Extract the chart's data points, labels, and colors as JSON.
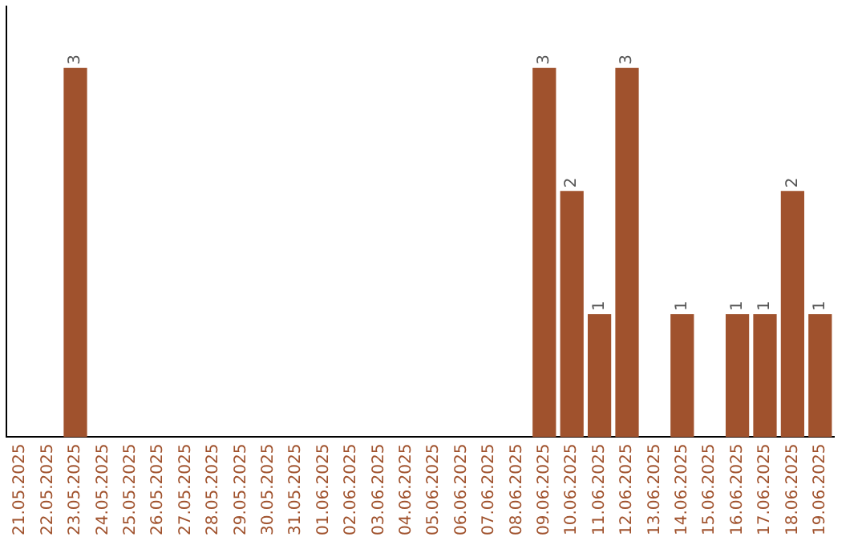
{
  "chart_data": {
    "type": "bar",
    "categories": [
      "21.05.2025",
      "22.05.2025",
      "23.05.2025",
      "24.05.2025",
      "25.05.2025",
      "26.05.2025",
      "27.05.2025",
      "28.05.2025",
      "29.05.2025",
      "30.05.2025",
      "31.05.2025",
      "01.06.2025",
      "02.06.2025",
      "03.06.2025",
      "04.06.2025",
      "05.06.2025",
      "06.06.2025",
      "07.06.2025",
      "08.06.2025",
      "09.06.2025",
      "10.06.2025",
      "11.06.2025",
      "12.06.2025",
      "13.06.2025",
      "14.06.2025",
      "15.06.2025",
      "16.06.2025",
      "17.06.2025",
      "18.06.2025",
      "19.06.2025"
    ],
    "values": [
      0,
      0,
      3,
      0,
      0,
      0,
      0,
      0,
      0,
      0,
      0,
      0,
      0,
      0,
      0,
      0,
      0,
      0,
      0,
      3,
      2,
      1,
      3,
      0,
      1,
      0,
      1,
      1,
      2,
      1
    ],
    "value_labels": [
      null,
      null,
      "3",
      null,
      null,
      null,
      null,
      null,
      null,
      null,
      null,
      null,
      null,
      null,
      null,
      null,
      null,
      null,
      null,
      "3",
      "2",
      "1",
      "3",
      null,
      "1",
      null,
      "1",
      "1",
      "2",
      "1"
    ],
    "color": "#a0522d",
    "grid": false,
    "legend": false,
    "tick_labels": "x"
  }
}
